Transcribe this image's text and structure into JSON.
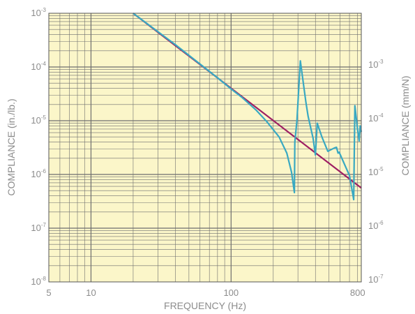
{
  "chart_data": {
    "type": "line",
    "xlabel": "FREQUENCY (Hz)",
    "ylabel_left": "COMPLIANCE (in./lb.)",
    "ylabel_right": "COMPLIANCE (mm/N)",
    "x_scale": "log",
    "y_scale": "log",
    "xlim": [
      5,
      850
    ],
    "ylim_left": [
      1e-08,
      0.001
    ],
    "x_ticks": [
      {
        "value": 5,
        "label": "5"
      },
      {
        "value": 10,
        "label": "10"
      },
      {
        "value": 100,
        "label": "100"
      },
      {
        "value": 800,
        "label": "800"
      }
    ],
    "y_ticks_left": [
      {
        "value": 0.001,
        "base": "10",
        "exp": "-3"
      },
      {
        "value": 0.0001,
        "base": "10",
        "exp": "-4"
      },
      {
        "value": 1e-05,
        "base": "10",
        "exp": "-5"
      },
      {
        "value": 1e-06,
        "base": "10",
        "exp": "-6"
      },
      {
        "value": 1e-07,
        "base": "10",
        "exp": "-7"
      },
      {
        "value": 1e-08,
        "base": "10",
        "exp": "-8"
      }
    ],
    "y_ticks_right": [
      {
        "value_left": 0.00011,
        "base": "10",
        "exp": "-3"
      },
      {
        "value_left": 1.1e-05,
        "base": "10",
        "exp": "-4"
      },
      {
        "value_left": 1.1e-06,
        "base": "10",
        "exp": "-5"
      },
      {
        "value_left": 1.1e-07,
        "base": "10",
        "exp": "-6"
      },
      {
        "value_left": 1.1e-08,
        "base": "10",
        "exp": "-7"
      }
    ],
    "grid": true,
    "background_color": "#fbf6c9",
    "grid_color": "#6e6e6e",
    "series": [
      {
        "color": "#9e1f63",
        "points": [
          [
            20,
            0.001
          ],
          [
            850,
            5.6e-07
          ]
        ]
      },
      {
        "color": "#39a9c2",
        "points": [
          [
            20,
            0.001
          ],
          [
            40,
            0.00026
          ],
          [
            80,
            6.3e-05
          ],
          [
            100,
            3.9e-05
          ],
          [
            120,
            2.7e-05
          ],
          [
            150,
            1.6e-05
          ],
          [
            180,
            9.6e-06
          ],
          [
            220,
            5e-06
          ],
          [
            250,
            2.5e-06
          ],
          [
            270,
            1.1e-06
          ],
          [
            283,
            4.6e-07
          ],
          [
            285,
            4e-06
          ],
          [
            295,
            1e-05
          ],
          [
            312,
            0.00013
          ],
          [
            342,
            2.2e-05
          ],
          [
            355,
            1.2e-05
          ],
          [
            385,
            4.7e-06
          ],
          [
            400,
            2.3e-06
          ],
          [
            412,
            9e-06
          ],
          [
            445,
            5e-06
          ],
          [
            490,
            2.7e-06
          ],
          [
            545,
            3.1e-06
          ],
          [
            565,
            3.2e-06
          ],
          [
            580,
            2.5e-06
          ],
          [
            590,
            2.6e-06
          ],
          [
            700,
            9.5e-07
          ],
          [
            750,
            3.4e-07
          ],
          [
            765,
            1.9e-05
          ],
          [
            800,
            6.8e-06
          ],
          [
            820,
            4.2e-06
          ],
          [
            835,
            8e-06
          ],
          [
            850,
            6.2e-06
          ]
        ]
      }
    ]
  }
}
